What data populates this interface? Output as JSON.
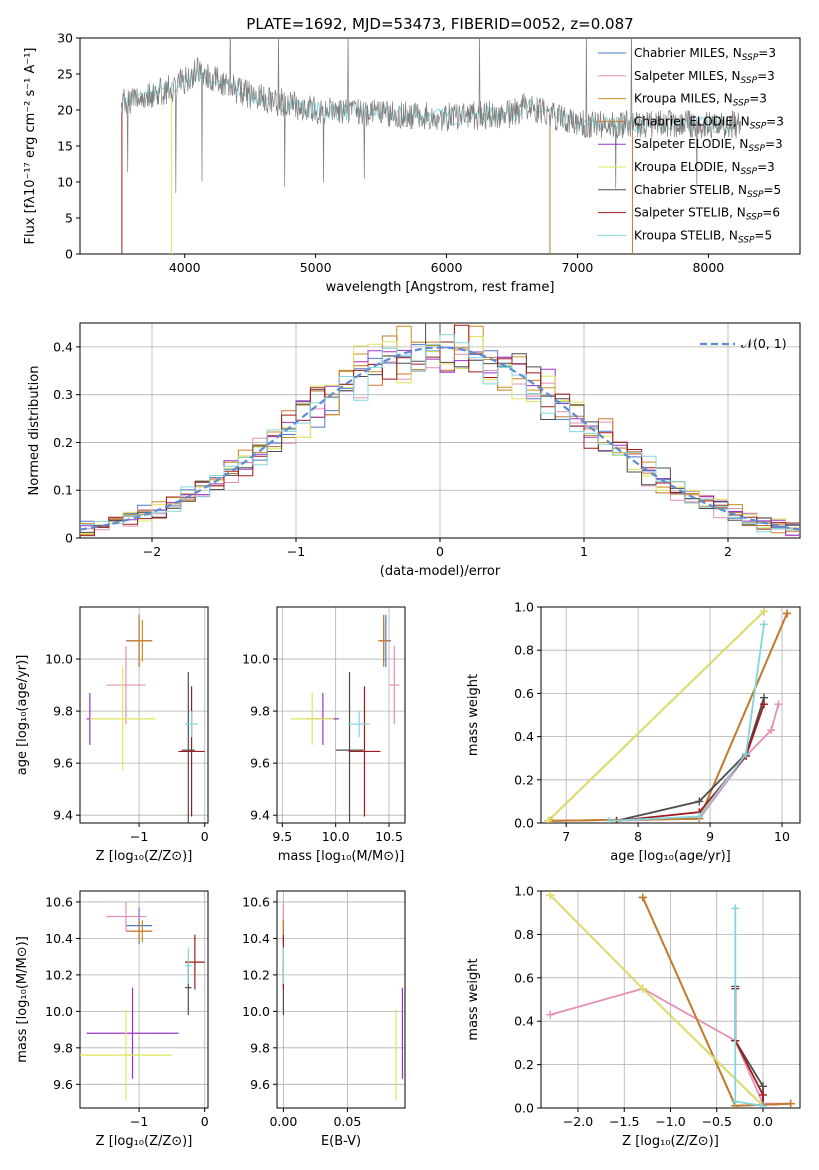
{
  "figure_title": "PLATE=1692, MJD=53473, FIBERID=0052, z=0.087",
  "colors": {
    "Chabrier MILES": "#4e79c8",
    "Salpeter MILES": "#e58fb7",
    "Kroupa MILES": "#c8901c",
    "Chabrier ELODIE": "#c87a2c",
    "Salpeter ELODIE": "#9b32c8",
    "Kroupa ELODIE": "#dfe65b",
    "Chabrier STELIB": "#4d4d4d",
    "Salpeter STELIB": "#a01b1b",
    "Kroupa STELIB": "#83d6dc",
    "data": "#808080",
    "normal": "#5b8ad8",
    "grid": "#b0b0b0"
  },
  "chart_data": [
    {
      "type": "line",
      "id": "spectrum",
      "title": "PLATE=1692, MJD=53473, FIBERID=0052, z=0.087",
      "xlabel": "wavelength [Angstrom, rest frame]",
      "ylabel": "Flux [fλ10⁻¹⁷ erg cm⁻² s⁻¹ A⁻¹]",
      "xlim": [
        3200,
        8700
      ],
      "ylim": [
        0,
        30
      ],
      "xticks": [
        4000,
        5000,
        6000,
        7000,
        8000
      ],
      "yticks": [
        0,
        5,
        10,
        15,
        20,
        25,
        30
      ],
      "grid": false,
      "legend_position": "top-right",
      "legend": [
        {
          "label": "Chabrier MILES, N",
          "sub": "SSP",
          "tail": "=3",
          "color_key": "Chabrier MILES"
        },
        {
          "label": "Salpeter MILES, N",
          "sub": "SSP",
          "tail": "=3",
          "color_key": "Salpeter MILES"
        },
        {
          "label": "Kroupa MILES, N",
          "sub": "SSP",
          "tail": "=3",
          "color_key": "Kroupa MILES"
        },
        {
          "label": "Chabrier ELODIE, N",
          "sub": "SSP",
          "tail": "=3",
          "color_key": "Chabrier ELODIE"
        },
        {
          "label": "Salpeter ELODIE, N",
          "sub": "SSP",
          "tail": "=3",
          "color_key": "Salpeter ELODIE"
        },
        {
          "label": "Kroupa ELODIE, N",
          "sub": "SSP",
          "tail": "=3",
          "color_key": "Kroupa ELODIE"
        },
        {
          "label": "Chabrier STELIB, N",
          "sub": "SSP",
          "tail": "=5",
          "color_key": "Chabrier STELIB"
        },
        {
          "label": "Salpeter STELIB, N",
          "sub": "SSP",
          "tail": "=6",
          "color_key": "Salpeter STELIB"
        },
        {
          "label": "Kroupa STELIB, N",
          "sub": "SSP",
          "tail": "=5",
          "color_key": "Kroupa STELIB"
        }
      ],
      "series": [
        {
          "name": "data",
          "color_key": "data",
          "x_range": [
            3520,
            8250
          ],
          "level": [
            [
              3520,
              21
            ],
            [
              3900,
              23
            ],
            [
              4100,
              25.5
            ],
            [
              4500,
              22
            ],
            [
              5000,
              20
            ],
            [
              5500,
              19.5
            ],
            [
              6000,
              19
            ],
            [
              6500,
              19.5
            ],
            [
              6600,
              20.5
            ],
            [
              7000,
              18
            ],
            [
              7500,
              18
            ],
            [
              8250,
              18
            ]
          ]
        },
        {
          "name": "models",
          "color_key": "Kroupa STELIB",
          "x_range": [
            3520,
            8200
          ],
          "level": [
            [
              3520,
              21
            ],
            [
              3900,
              23
            ],
            [
              4100,
              25
            ],
            [
              4500,
              22
            ],
            [
              5000,
              20
            ],
            [
              5500,
              19.5
            ],
            [
              6000,
              19
            ],
            [
              6500,
              19.5
            ],
            [
              6600,
              20.5
            ],
            [
              7000,
              18
            ],
            [
              7500,
              18
            ],
            [
              8200,
              18
            ]
          ]
        }
      ],
      "model_cutoffs": [
        {
          "color_key": "Salpeter STELIB",
          "x": 3520
        },
        {
          "color_key": "Kroupa ELODIE",
          "x": 3900
        },
        {
          "color_key": "Chabrier ELODIE",
          "x": 6790
        },
        {
          "color_key": "Chabrier ELODIE",
          "x": 7420
        }
      ]
    },
    {
      "type": "bar",
      "id": "residuals",
      "xlabel": "(data-model)/error",
      "ylabel": "Normed distribution",
      "xlim": [
        -2.5,
        2.5
      ],
      "ylim": [
        0,
        0.45
      ],
      "xticks": [
        -2,
        -1,
        0,
        1,
        2
      ],
      "xtick_labels": [
        "−2",
        "−1",
        "0",
        "1",
        "2"
      ],
      "yticks": [
        0.0,
        0.1,
        0.2,
        0.3,
        0.4
      ],
      "grid": true,
      "legend_position": "top-right",
      "legend": [
        {
          "label": "𝒩(0, 1)",
          "color_key": "normal",
          "style": "dashed"
        }
      ],
      "bin_width": 0.1,
      "series_color_keys": [
        "Chabrier MILES",
        "Salpeter MILES",
        "Kroupa MILES",
        "Chabrier ELODIE",
        "Salpeter ELODIE",
        "Kroupa ELODIE",
        "Chabrier STELIB",
        "Salpeter STELIB",
        "Kroupa STELIB"
      ]
    },
    {
      "type": "scatter",
      "id": "age_vs_Z",
      "xlabel": "Z [log₁₀(Z/Z⊙)]",
      "ylabel": "age  [log₁₀(age/yr)]",
      "xlim": [
        -1.9,
        0.05
      ],
      "ylim": [
        9.37,
        10.2
      ],
      "xticks": [
        -1,
        0
      ],
      "xtick_labels": [
        "−1",
        "0"
      ],
      "yticks": [
        9.4,
        9.6,
        9.8,
        10.0
      ],
      "ytick_labels": [
        "9.4",
        "9.6",
        "9.8",
        "10.0"
      ],
      "grid": true,
      "points": [
        {
          "color_key": "Chabrier MILES",
          "x": -1.0,
          "xerr": 0.2,
          "y": 10.07,
          "yerr": 0.1
        },
        {
          "color_key": "Salpeter MILES",
          "x": -1.2,
          "xerr": 0.3,
          "y": 9.9,
          "yerr": 0.15
        },
        {
          "color_key": "Kroupa MILES",
          "x": -0.95,
          "xerr": 0.15,
          "y": 10.07,
          "yerr": 0.08
        },
        {
          "color_key": "Chabrier ELODIE",
          "x": -1.0,
          "xerr": 0.2,
          "y": 10.07,
          "yerr": 0.1
        },
        {
          "color_key": "Salpeter ELODIE",
          "x": -1.75,
          "xerr": 0.05,
          "y": 9.77,
          "yerr": 0.1
        },
        {
          "color_key": "Kroupa ELODIE",
          "x": -1.25,
          "xerr": 0.5,
          "y": 9.77,
          "yerr": 0.2
        },
        {
          "color_key": "Chabrier STELIB",
          "x": -0.25,
          "xerr": 0.1,
          "y": 9.65,
          "yerr": 0.3
        },
        {
          "color_key": "Salpeter STELIB",
          "x": -0.2,
          "xerr": 0.2,
          "y": 9.645,
          "yerr": 0.25
        },
        {
          "color_key": "Kroupa STELIB",
          "x": -0.2,
          "xerr": 0.1,
          "y": 9.75,
          "yerr": 0.05
        }
      ]
    },
    {
      "type": "scatter",
      "id": "age_vs_mass",
      "xlabel": "mass [log₁₀(M/M⊙)]",
      "xlim": [
        9.45,
        10.65
      ],
      "ylim": [
        9.37,
        10.2
      ],
      "xticks": [
        9.5,
        10.0,
        10.5
      ],
      "xtick_labels": [
        "9.5",
        "10.0",
        "10.5"
      ],
      "yticks": [
        9.4,
        9.6,
        9.8,
        10.0
      ],
      "ytick_labels": [
        "9.4",
        "9.6",
        "9.8",
        "10.0"
      ],
      "grid": true,
      "points": [
        {
          "color_key": "Chabrier MILES",
          "x": 10.47,
          "xerr": 0.05,
          "y": 10.07,
          "yerr": 0.1
        },
        {
          "color_key": "Salpeter MILES",
          "x": 10.55,
          "xerr": 0.05,
          "y": 9.9,
          "yerr": 0.15
        },
        {
          "color_key": "Kroupa MILES",
          "x": 10.45,
          "xerr": 0.05,
          "y": 10.07,
          "yerr": 0.08
        },
        {
          "color_key": "Chabrier ELODIE",
          "x": 10.45,
          "xerr": 0.05,
          "y": 10.07,
          "yerr": 0.1
        },
        {
          "color_key": "Salpeter ELODIE",
          "x": 9.88,
          "xerr": 0.15,
          "y": 9.77,
          "yerr": 0.1
        },
        {
          "color_key": "Kroupa ELODIE",
          "x": 9.78,
          "xerr": 0.2,
          "y": 9.77,
          "yerr": 0.1
        },
        {
          "color_key": "Chabrier STELIB",
          "x": 10.13,
          "xerr": 0.13,
          "y": 9.65,
          "yerr": 0.3
        },
        {
          "color_key": "Salpeter STELIB",
          "x": 10.27,
          "xerr": 0.15,
          "y": 9.645,
          "yerr": 0.25
        },
        {
          "color_key": "Kroupa STELIB",
          "x": 10.22,
          "xerr": 0.1,
          "y": 9.75,
          "yerr": 0.05
        }
      ]
    },
    {
      "type": "line",
      "id": "mass_weight_vs_age",
      "xlabel": "age  [log₁₀(age/yr)]",
      "ylabel": "mass weight",
      "xlim": [
        6.65,
        10.25
      ],
      "ylim": [
        0,
        1
      ],
      "xticks": [
        7,
        8,
        9,
        10
      ],
      "yticks": [
        0,
        0.2,
        0.4,
        0.6,
        0.8,
        1.0
      ],
      "ytick_labels": [
        "0.0",
        "0.2",
        "0.4",
        "0.6",
        "0.8",
        "1.0"
      ],
      "grid": true,
      "series": [
        {
          "color_key": "Chabrier MILES",
          "x": [
            6.78,
            8.85,
            10.07
          ],
          "y": [
            0.01,
            0.02,
            0.97
          ]
        },
        {
          "color_key": "Salpeter MILES",
          "x": [
            7.6,
            8.85,
            9.5,
            9.85,
            9.95
          ],
          "y": [
            0.01,
            0.02,
            0.31,
            0.43,
            0.55
          ]
        },
        {
          "color_key": "Kroupa MILES",
          "x": [
            6.8,
            8.85,
            10.07
          ],
          "y": [
            0.01,
            0.02,
            0.97
          ]
        },
        {
          "color_key": "Chabrier ELODIE",
          "x": [
            6.78,
            8.85,
            10.07
          ],
          "y": [
            0.01,
            0.02,
            0.97
          ]
        },
        {
          "color_key": "Salpeter ELODIE",
          "x": [
            6.75,
            9.75
          ],
          "y": [
            0.01,
            0.98
          ]
        },
        {
          "color_key": "Kroupa ELODIE",
          "x": [
            6.75,
            9.75
          ],
          "y": [
            0.01,
            0.98
          ]
        },
        {
          "color_key": "Chabrier STELIB",
          "x": [
            7.7,
            8.85,
            9.5,
            9.75
          ],
          "y": [
            0.01,
            0.1,
            0.32,
            0.58
          ]
        },
        {
          "color_key": "Salpeter STELIB",
          "x": [
            7.7,
            8.85,
            9.5,
            9.75
          ],
          "y": [
            0.01,
            0.05,
            0.31,
            0.55
          ]
        },
        {
          "color_key": "Kroupa STELIB",
          "x": [
            7.6,
            8.85,
            9.5,
            9.75
          ],
          "y": [
            0.01,
            0.03,
            0.32,
            0.92
          ]
        }
      ]
    },
    {
      "type": "scatter",
      "id": "mass_vs_Z",
      "xlabel": "Z [log₁₀(Z/Z⊙)]",
      "ylabel": "mass [log₁₀(M/M⊙)]",
      "xlim": [
        -1.9,
        0.05
      ],
      "ylim": [
        9.47,
        10.66
      ],
      "xticks": [
        -1,
        0
      ],
      "xtick_labels": [
        "−1",
        "0"
      ],
      "yticks": [
        9.6,
        9.8,
        10.0,
        10.2,
        10.4,
        10.6
      ],
      "ytick_labels": [
        "9.6",
        "9.8",
        "10.0",
        "10.2",
        "10.4",
        "10.6"
      ],
      "grid": true,
      "points": [
        {
          "color_key": "Chabrier MILES",
          "x": -1.0,
          "xerr": 0.2,
          "y": 10.47,
          "yerr": 0.1
        },
        {
          "color_key": "Salpeter MILES",
          "x": -1.2,
          "xerr": 0.3,
          "y": 10.52,
          "yerr": 0.08
        },
        {
          "color_key": "Kroupa MILES",
          "x": -0.95,
          "xerr": 0.15,
          "y": 10.44,
          "yerr": 0.06
        },
        {
          "color_key": "Chabrier ELODIE",
          "x": -1.0,
          "xerr": 0.2,
          "y": 10.44,
          "yerr": 0.06
        },
        {
          "color_key": "Salpeter ELODIE",
          "x": -1.1,
          "xerr": 0.7,
          "y": 9.88,
          "yerr": 0.25
        },
        {
          "color_key": "Kroupa ELODIE",
          "x": -1.2,
          "xerr": 0.7,
          "y": 9.76,
          "yerr": 0.25
        },
        {
          "color_key": "Chabrier STELIB",
          "x": -0.25,
          "xerr": 0.05,
          "y": 10.13,
          "yerr": 0.15
        },
        {
          "color_key": "Salpeter STELIB",
          "x": -0.15,
          "xerr": 0.15,
          "y": 10.27,
          "yerr": 0.15
        },
        {
          "color_key": "Kroupa STELIB",
          "x": -0.25,
          "xerr": 0.05,
          "y": 10.25,
          "yerr": 0.1
        }
      ]
    },
    {
      "type": "scatter",
      "id": "mass_vs_ebv",
      "xlabel": "E(B-V)",
      "xlim": [
        -0.005,
        0.095
      ],
      "ylim": [
        9.47,
        10.66
      ],
      "xticks": [
        0.0,
        0.05
      ],
      "xtick_labels": [
        "0.00",
        "0.05"
      ],
      "yticks": [
        9.6,
        9.8,
        10.0,
        10.2,
        10.4,
        10.6
      ],
      "ytick_labels": [
        "9.6",
        "9.8",
        "10.0",
        "10.2",
        "10.4",
        "10.6"
      ],
      "grid": true,
      "points": [
        {
          "color_key": "Chabrier MILES",
          "x": 0.0,
          "xerr": 0.0,
          "y": 10.47,
          "yerr": 0.1
        },
        {
          "color_key": "Salpeter MILES",
          "x": 0.0,
          "xerr": 0.0,
          "y": 10.52,
          "yerr": 0.08
        },
        {
          "color_key": "Kroupa MILES",
          "x": 0.0,
          "xerr": 0.0,
          "y": 10.44,
          "yerr": 0.06
        },
        {
          "color_key": "Chabrier ELODIE",
          "x": 0.0,
          "xerr": 0.0,
          "y": 10.44,
          "yerr": 0.06
        },
        {
          "color_key": "Salpeter ELODIE",
          "x": 0.093,
          "xerr": 0.0,
          "y": 9.88,
          "yerr": 0.25
        },
        {
          "color_key": "Kroupa ELODIE",
          "x": 0.088,
          "xerr": 0.0,
          "y": 9.76,
          "yerr": 0.25
        },
        {
          "color_key": "Chabrier STELIB",
          "x": 0.0,
          "xerr": 0.0,
          "y": 10.13,
          "yerr": 0.15
        },
        {
          "color_key": "Salpeter STELIB",
          "x": 0.0,
          "xerr": 0.0,
          "y": 10.27,
          "yerr": 0.15
        },
        {
          "color_key": "Kroupa STELIB",
          "x": 0.0,
          "xerr": 0.0,
          "y": 10.25,
          "yerr": 0.1
        }
      ]
    },
    {
      "type": "line",
      "id": "mass_weight_vs_Z",
      "xlabel": "Z [log₁₀(Z/Z⊙)]",
      "ylabel": "mass weight",
      "xlim": [
        -2.4,
        0.4
      ],
      "ylim": [
        0,
        1
      ],
      "xticks": [
        -2.0,
        -1.5,
        -1.0,
        -0.5,
        0.0
      ],
      "xtick_labels": [
        "−2.0",
        "−1.5",
        "−1.0",
        "−0.5",
        "0.0"
      ],
      "yticks": [
        0,
        0.2,
        0.4,
        0.6,
        0.8,
        1.0
      ],
      "ytick_labels": [
        "0.0",
        "0.2",
        "0.4",
        "0.6",
        "0.8",
        "1.0"
      ],
      "grid": true,
      "series": [
        {
          "color_key": "Chabrier MILES",
          "x": [
            -1.3,
            -0.3,
            0.3
          ],
          "y": [
            0.97,
            0.01,
            0.02
          ]
        },
        {
          "color_key": "Salpeter MILES",
          "x": [
            -2.3,
            -1.3,
            -0.3,
            0.0,
            0.3
          ],
          "y": [
            0.43,
            0.55,
            0.31,
            0.02,
            0.02
          ]
        },
        {
          "color_key": "Kroupa MILES",
          "x": [
            -1.3,
            -0.3,
            0.3
          ],
          "y": [
            0.97,
            0.01,
            0.02
          ]
        },
        {
          "color_key": "Chabrier ELODIE",
          "x": [
            -1.3,
            -0.3,
            0.3
          ],
          "y": [
            0.97,
            0.01,
            0.02
          ]
        },
        {
          "color_key": "Salpeter ELODIE",
          "x": [
            -2.3,
            -1.3,
            0.0
          ],
          "y": [
            0.98,
            0.55,
            0.01
          ]
        },
        {
          "color_key": "Kroupa ELODIE",
          "x": [
            -2.3,
            -1.3,
            0.0
          ],
          "y": [
            0.98,
            0.55,
            0.01
          ]
        },
        {
          "color_key": "Chabrier STELIB",
          "x": [
            -0.3,
            -0.3,
            0.0,
            0.0
          ],
          "y": [
            0.56,
            0.31,
            0.1,
            0.01
          ]
        },
        {
          "color_key": "Salpeter STELIB",
          "x": [
            -0.3,
            -0.3,
            0.0,
            0.0
          ],
          "y": [
            0.55,
            0.31,
            0.06,
            0.01
          ]
        },
        {
          "color_key": "Kroupa STELIB",
          "x": [
            -0.3,
            -0.3,
            0.0
          ],
          "y": [
            0.92,
            0.03,
            0.01
          ]
        }
      ]
    }
  ]
}
